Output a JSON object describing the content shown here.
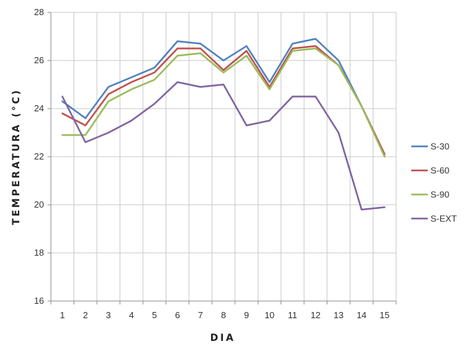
{
  "chart_data": {
    "type": "line",
    "title": "",
    "xlabel": "DIA",
    "ylabel": "TEMPERATURA (°C)",
    "x": [
      1,
      2,
      3,
      4,
      5,
      6,
      7,
      8,
      9,
      10,
      11,
      12,
      13,
      14,
      15
    ],
    "ylim": [
      16,
      28
    ],
    "yticks": [
      16,
      18,
      20,
      22,
      24,
      26,
      28
    ],
    "grid": true,
    "legend_position": "right",
    "series": [
      {
        "name": "S-30",
        "color": "#4F81BD",
        "values": [
          24.3,
          23.6,
          24.9,
          25.3,
          25.7,
          26.8,
          26.7,
          26.0,
          26.6,
          25.1,
          26.7,
          26.9,
          26.0,
          24.1,
          22.1
        ]
      },
      {
        "name": "S-60",
        "color": "#C0504D",
        "values": [
          23.8,
          23.3,
          24.6,
          25.1,
          25.5,
          26.5,
          26.5,
          25.6,
          26.4,
          24.9,
          26.5,
          26.6,
          25.8,
          24.1,
          22.1
        ]
      },
      {
        "name": "S-90",
        "color": "#9BBB59",
        "values": [
          22.9,
          22.9,
          24.3,
          24.8,
          25.2,
          26.2,
          26.3,
          25.5,
          26.2,
          24.8,
          26.4,
          26.5,
          25.8,
          24.1,
          22.0
        ]
      },
      {
        "name": "S-EXT",
        "color": "#8064A2",
        "values": [
          24.5,
          22.6,
          23.0,
          23.5,
          24.2,
          25.1,
          24.9,
          25.0,
          23.3,
          23.5,
          24.5,
          24.5,
          23.0,
          19.8,
          19.9
        ]
      }
    ]
  }
}
